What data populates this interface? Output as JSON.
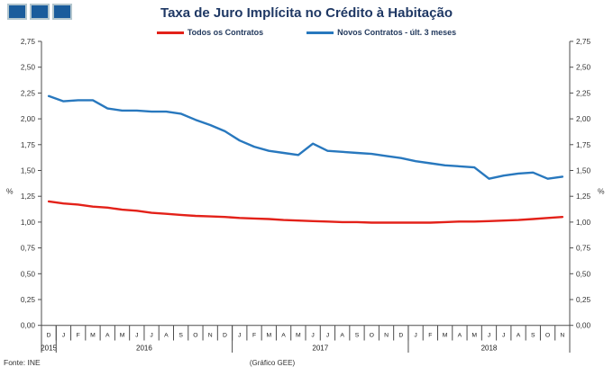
{
  "title": "Taxa de Juro Implícita no Crédito à Habitação",
  "logo": {
    "color": "#1a5c9c",
    "border_color": "#b3c6ce"
  },
  "legend": [
    {
      "label": "Todos os Contratos",
      "color": "#e32119"
    },
    {
      "label": "Novos Contratos - últ. 3 meses",
      "color": "#2878be"
    }
  ],
  "footer": {
    "source": "Fonte: INE"
  },
  "chart_data": {
    "type": "line",
    "title": "Taxa de Juro Implícita no Crédito à Habitação",
    "xlabel": "(Gráfico GEE)",
    "ylabel_left": "%",
    "ylabel_right": "%",
    "ylim": [
      0,
      2.75
    ],
    "y_tick_step": 0.25,
    "y_tick_labels": [
      "0,00",
      "0,25",
      "0,50",
      "0,75",
      "1,00",
      "1,25",
      "1,50",
      "1,75",
      "2,00",
      "2,25",
      "2,50",
      "2,75"
    ],
    "grid": false,
    "legend_position": "top",
    "months": [
      "D",
      "J",
      "F",
      "M",
      "A",
      "M",
      "J",
      "J",
      "A",
      "S",
      "O",
      "N",
      "D",
      "J",
      "F",
      "M",
      "A",
      "M",
      "J",
      "J",
      "A",
      "S",
      "O",
      "N",
      "D",
      "J",
      "F",
      "M",
      "A",
      "M",
      "J",
      "J",
      "A",
      "S",
      "O",
      "N"
    ],
    "year_groups": [
      {
        "label": "2015",
        "span": 1
      },
      {
        "label": "2016",
        "span": 12
      },
      {
        "label": "2017",
        "span": 12
      },
      {
        "label": "2018",
        "span": 11
      }
    ],
    "series": [
      {
        "name": "Todos os Contratos",
        "color": "#e32119",
        "values": [
          1.2,
          1.18,
          1.17,
          1.15,
          1.14,
          1.12,
          1.11,
          1.09,
          1.08,
          1.07,
          1.06,
          1.055,
          1.05,
          1.04,
          1.035,
          1.03,
          1.02,
          1.015,
          1.01,
          1.005,
          1.0,
          1.0,
          0.995,
          0.995,
          0.995,
          0.995,
          0.995,
          1.0,
          1.005,
          1.005,
          1.01,
          1.015,
          1.02,
          1.03,
          1.04,
          1.05
        ]
      },
      {
        "name": "Novos Contratos - últ. 3 meses",
        "color": "#2878be",
        "values": [
          2.22,
          2.17,
          2.18,
          2.18,
          2.1,
          2.08,
          2.08,
          2.07,
          2.07,
          2.05,
          1.99,
          1.94,
          1.88,
          1.79,
          1.73,
          1.69,
          1.67,
          1.65,
          1.76,
          1.69,
          1.68,
          1.67,
          1.66,
          1.64,
          1.62,
          1.59,
          1.57,
          1.55,
          1.54,
          1.53,
          1.42,
          1.45,
          1.47,
          1.48,
          1.42,
          1.44
        ]
      }
    ]
  }
}
